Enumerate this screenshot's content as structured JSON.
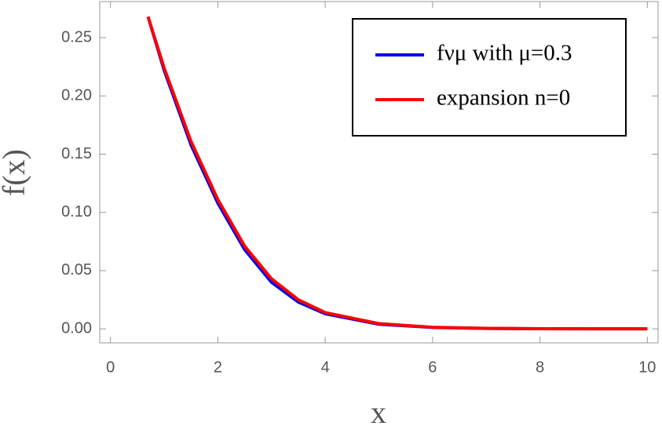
{
  "chart_data": {
    "type": "line",
    "xlabel": "x",
    "ylabel": "f(x)",
    "x": [
      0.7,
      1,
      1.5,
      2,
      2.5,
      3,
      3.5,
      4,
      5,
      6,
      7,
      8,
      9,
      10
    ],
    "series": [
      {
        "name": "fνμ with μ=0.3",
        "color": "#0000ee",
        "values": [
          0.268,
          0.222,
          0.158,
          0.108,
          0.068,
          0.04,
          0.023,
          0.013,
          0.004,
          0.0012,
          0.0004,
          0.0001,
          3e-05,
          1e-05
        ]
      },
      {
        "name": "expansion n=0",
        "color": "#ff0000",
        "values": [
          0.268,
          0.224,
          0.161,
          0.111,
          0.071,
          0.043,
          0.025,
          0.014,
          0.0045,
          0.0014,
          0.0005,
          0.00015,
          5e-05,
          2e-05
        ]
      }
    ],
    "xlim": [
      -0.2,
      10.2
    ],
    "ylim": [
      -0.012,
      0.281
    ],
    "xticks": [
      0,
      2,
      4,
      6,
      8,
      10
    ],
    "yticks": [
      {
        "value": 0,
        "label": "0.00"
      },
      {
        "value": 0.05,
        "label": "0.05"
      },
      {
        "value": 0.1,
        "label": "0.10"
      },
      {
        "value": 0.15,
        "label": "0.15"
      },
      {
        "value": 0.2,
        "label": "0.20"
      },
      {
        "value": 0.25,
        "label": "0.25"
      }
    ],
    "legend": "upper right"
  }
}
